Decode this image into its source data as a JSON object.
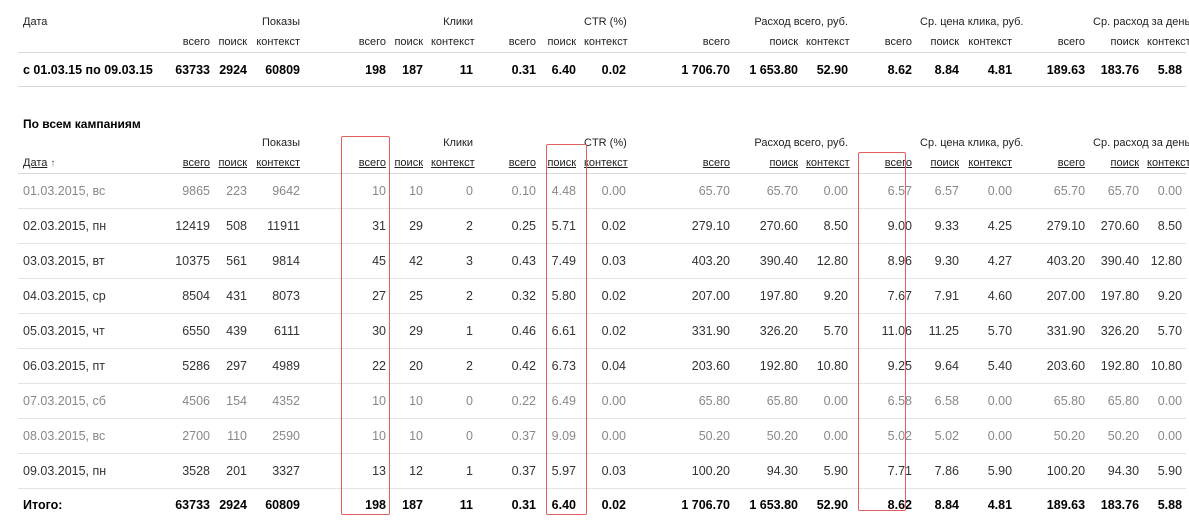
{
  "summary": {
    "headers": {
      "date": "Дата",
      "impressions": "Показы",
      "clicks": "Клики",
      "ctr": "CTR (%)",
      "spend": "Расход всего, руб.",
      "cpc": "Ср. цена клика, руб.",
      "daily": "Ср. расход за день, руб.",
      "total": "всего",
      "search": "поиск",
      "context": "контекст"
    },
    "row": [
      "с 01.03.15 по 09.03.15",
      "63733",
      "2924",
      "60809",
      "198",
      "187",
      "11",
      "0.31",
      "6.40",
      "0.02",
      "1 706.70",
      "1 653.80",
      "52.90",
      "8.62",
      "8.84",
      "4.81",
      "189.63",
      "183.76",
      "5.88"
    ]
  },
  "section_title": "По всем кампаниям",
  "detail": {
    "headers": {
      "date": "Дата",
      "sort_arrow": "↑",
      "impressions": "Показы",
      "clicks": "Клики",
      "ctr": "CTR (%)",
      "spend": "Расход всего, руб.",
      "cpc": "Ср. цена клика, руб.",
      "daily": "Ср. расход за день, руб.",
      "total": "всего",
      "search": "поиск",
      "context": "контекст"
    },
    "rows": [
      [
        "01.03.2015, вс",
        "9865",
        "223",
        "9642",
        "10",
        "10",
        "0",
        "0.10",
        "4.48",
        "0.00",
        "65.70",
        "65.70",
        "0.00",
        "6.57",
        "6.57",
        "0.00",
        "65.70",
        "65.70",
        "0.00"
      ],
      [
        "02.03.2015, пн",
        "12419",
        "508",
        "11911",
        "31",
        "29",
        "2",
        "0.25",
        "5.71",
        "0.02",
        "279.10",
        "270.60",
        "8.50",
        "9.00",
        "9.33",
        "4.25",
        "279.10",
        "270.60",
        "8.50"
      ],
      [
        "03.03.2015, вт",
        "10375",
        "561",
        "9814",
        "45",
        "42",
        "3",
        "0.43",
        "7.49",
        "0.03",
        "403.20",
        "390.40",
        "12.80",
        "8.96",
        "9.30",
        "4.27",
        "403.20",
        "390.40",
        "12.80"
      ],
      [
        "04.03.2015, ср",
        "8504",
        "431",
        "8073",
        "27",
        "25",
        "2",
        "0.32",
        "5.80",
        "0.02",
        "207.00",
        "197.80",
        "9.20",
        "7.67",
        "7.91",
        "4.60",
        "207.00",
        "197.80",
        "9.20"
      ],
      [
        "05.03.2015, чт",
        "6550",
        "439",
        "6111",
        "30",
        "29",
        "1",
        "0.46",
        "6.61",
        "0.02",
        "331.90",
        "326.20",
        "5.70",
        "11.06",
        "11.25",
        "5.70",
        "331.90",
        "326.20",
        "5.70"
      ],
      [
        "06.03.2015, пт",
        "5286",
        "297",
        "4989",
        "22",
        "20",
        "2",
        "0.42",
        "6.73",
        "0.04",
        "203.60",
        "192.80",
        "10.80",
        "9.25",
        "9.64",
        "5.40",
        "203.60",
        "192.80",
        "10.80"
      ],
      [
        "07.03.2015, сб",
        "4506",
        "154",
        "4352",
        "10",
        "10",
        "0",
        "0.22",
        "6.49",
        "0.00",
        "65.80",
        "65.80",
        "0.00",
        "6.58",
        "6.58",
        "0.00",
        "65.80",
        "65.80",
        "0.00"
      ],
      [
        "08.03.2015, вс",
        "2700",
        "110",
        "2590",
        "10",
        "10",
        "0",
        "0.37",
        "9.09",
        "0.00",
        "50.20",
        "50.20",
        "0.00",
        "5.02",
        "5.02",
        "0.00",
        "50.20",
        "50.20",
        "0.00"
      ],
      [
        "09.03.2015, пн",
        "3528",
        "201",
        "3327",
        "13",
        "12",
        "1",
        "0.37",
        "5.97",
        "0.03",
        "100.20",
        "94.30",
        "5.90",
        "7.71",
        "7.86",
        "5.90",
        "100.20",
        "94.30",
        "5.90"
      ]
    ],
    "weekend_rows": [
      0,
      6,
      7
    ],
    "total": [
      "Итого:",
      "63733",
      "2924",
      "60809",
      "198",
      "187",
      "11",
      "0.31",
      "6.40",
      "0.02",
      "1 706.70",
      "1 653.80",
      "52.90",
      "8.62",
      "8.84",
      "4.81",
      "189.63",
      "183.76",
      "5.88"
    ]
  },
  "highlight_color": "#e06060"
}
